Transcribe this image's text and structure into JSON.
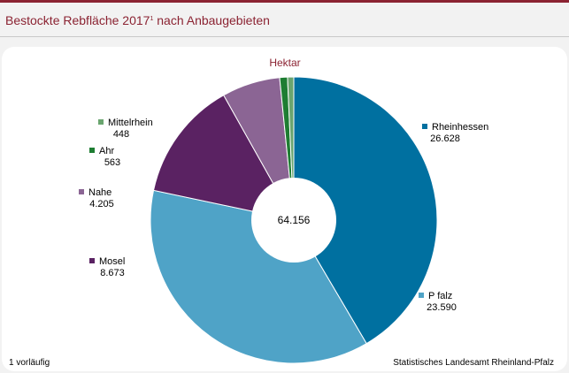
{
  "header": {
    "title_main": "Bestockte Rebfläche 2017",
    "title_sup": "1",
    "title_rest": " nach Anbaugebieten"
  },
  "chart_data": {
    "type": "pie",
    "donut": true,
    "unit": "Hektar",
    "total_label": "64.156",
    "total": 64156,
    "slices": [
      {
        "name": "Rheinhessen",
        "value": 26628,
        "value_label": "26.628",
        "color": "#0070a0"
      },
      {
        "name": "P falz",
        "value": 23590,
        "value_label": "23.590",
        "color": "#4fa3c7"
      },
      {
        "name": "Mosel",
        "value": 8673,
        "value_label": "8.673",
        "color": "#5a2262"
      },
      {
        "name": "Nahe",
        "value": 4205,
        "value_label": "4.205",
        "color": "#8b6594"
      },
      {
        "name": "Ahr",
        "value": 563,
        "value_label": "563",
        "color": "#1e7d32"
      },
      {
        "name": "Mittelrhein",
        "value": 448,
        "value_label": "448",
        "color": "#6aa56f"
      }
    ],
    "start_angle_deg": 90,
    "direction": "clockwise"
  },
  "footer": {
    "note": "1 vorläufig",
    "source": "Statistisches Landesamt Rheinland-Pfalz"
  }
}
